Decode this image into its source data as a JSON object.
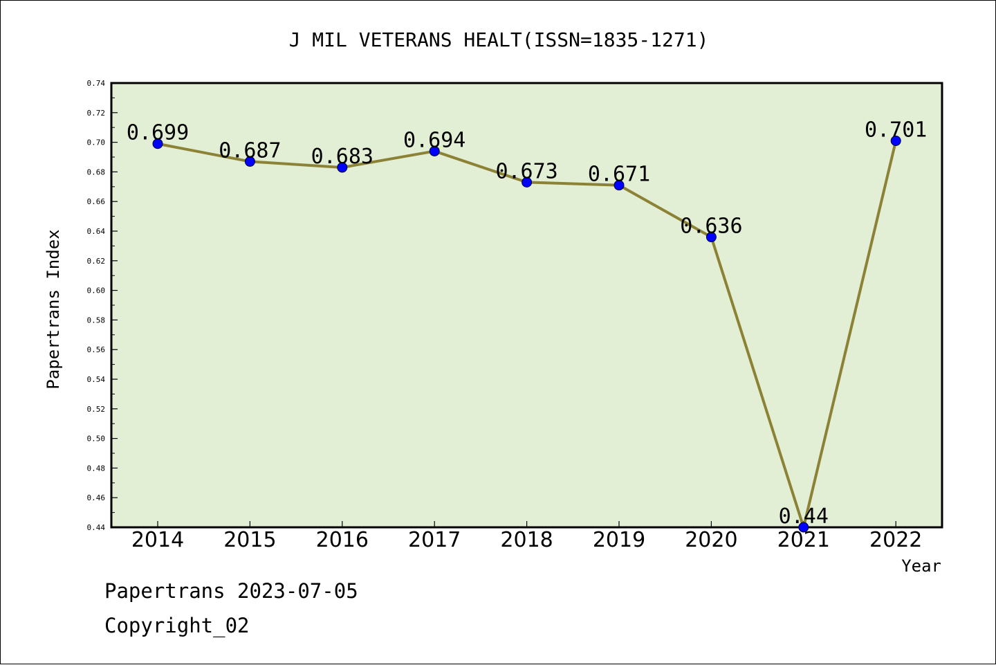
{
  "chart_data": {
    "type": "line",
    "title": "J MIL VETERANS HEALT(ISSN=1835-1271)",
    "xlabel": "Year",
    "ylabel": "Papertrans Index",
    "categories": [
      "2014",
      "2015",
      "2016",
      "2017",
      "2018",
      "2019",
      "2020",
      "2021",
      "2022"
    ],
    "values": [
      0.699,
      0.687,
      0.683,
      0.694,
      0.673,
      0.671,
      0.636,
      0.44,
      0.701
    ],
    "data_labels": [
      "0.699",
      "0.687",
      "0.683",
      "0.694",
      "0.673",
      "0.671",
      "0.636",
      "0.44",
      "0.701"
    ],
    "ylim": [
      0.44,
      0.74
    ],
    "yticks": [
      "0.44",
      "0.46",
      "0.48",
      "0.50",
      "0.52",
      "0.54",
      "0.56",
      "0.58",
      "0.60",
      "0.62",
      "0.64",
      "0.66",
      "0.68",
      "0.70",
      "0.72",
      "0.74"
    ],
    "grid": false,
    "legend": "none",
    "colors": {
      "plot_background": "#e2efd5",
      "line": "#8b8236",
      "marker": "#0000ff"
    }
  },
  "footer": {
    "line1": "Papertrans 2023-07-05",
    "line2": "Copyright_02"
  }
}
